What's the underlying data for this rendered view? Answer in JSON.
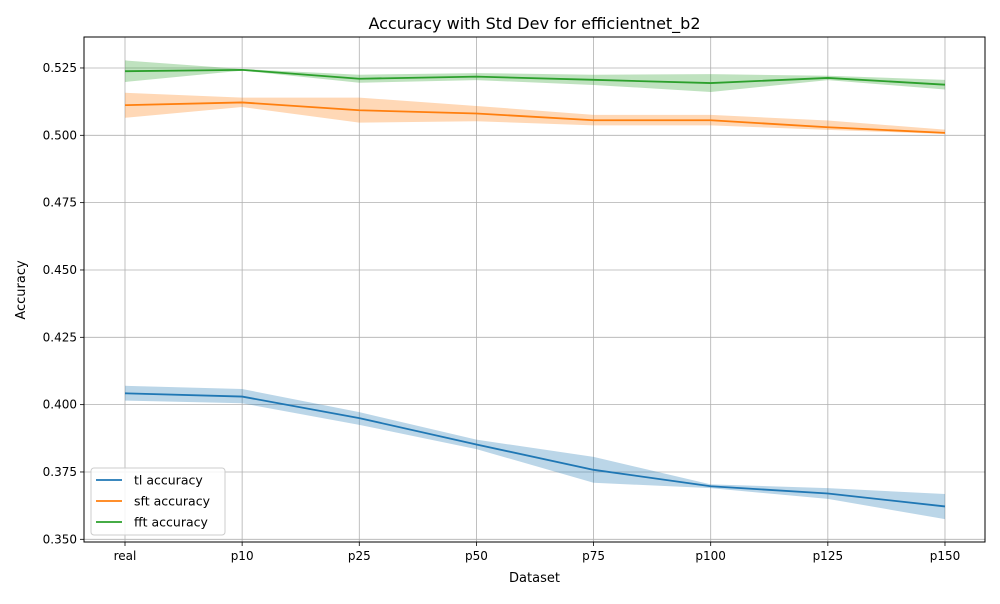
{
  "chart_data": {
    "type": "line",
    "title": "Accuracy with Std Dev for efficientnet_b2",
    "xlabel": "Dataset",
    "ylabel": "Accuracy",
    "categories": [
      "real",
      "p10",
      "p25",
      "p50",
      "p75",
      "p100",
      "p125",
      "p150"
    ],
    "ylim": [
      0.349,
      0.5365
    ],
    "yticks": [
      0.35,
      0.375,
      0.4,
      0.425,
      0.45,
      0.475,
      0.5,
      0.525
    ],
    "ytick_labels": [
      "0.350",
      "0.375",
      "0.400",
      "0.425",
      "0.450",
      "0.475",
      "0.500",
      "0.525"
    ],
    "grid": true,
    "legend_position": "lower-left",
    "series": [
      {
        "name": "tl accuracy",
        "color": "#1f77b4",
        "values": [
          0.4042,
          0.403,
          0.395,
          0.3852,
          0.3758,
          0.3697,
          0.367,
          0.3622
        ],
        "lower": [
          0.4015,
          0.4005,
          0.3925,
          0.3835,
          0.371,
          0.369,
          0.365,
          0.3575
        ],
        "upper": [
          0.407,
          0.4058,
          0.3972,
          0.387,
          0.3806,
          0.3704,
          0.369,
          0.3668
        ]
      },
      {
        "name": "sft accuracy",
        "color": "#ff7f0e",
        "values": [
          0.5112,
          0.5122,
          0.5093,
          0.5081,
          0.5056,
          0.5056,
          0.503,
          0.5009
        ],
        "lower": [
          0.5065,
          0.5105,
          0.5047,
          0.5052,
          0.5037,
          0.5037,
          0.502,
          0.5005
        ],
        "upper": [
          0.5158,
          0.514,
          0.514,
          0.5109,
          0.5076,
          0.5076,
          0.5055,
          0.5021
        ]
      },
      {
        "name": "fft accuracy",
        "color": "#2ca02c",
        "values": [
          0.5238,
          0.5243,
          0.521,
          0.5218,
          0.5206,
          0.5194,
          0.5213,
          0.5188
        ],
        "lower": [
          0.5198,
          0.524,
          0.5195,
          0.5205,
          0.5187,
          0.5161,
          0.5205,
          0.517
        ],
        "upper": [
          0.5278,
          0.5246,
          0.5225,
          0.5231,
          0.5225,
          0.5227,
          0.5221,
          0.5206
        ]
      }
    ]
  }
}
